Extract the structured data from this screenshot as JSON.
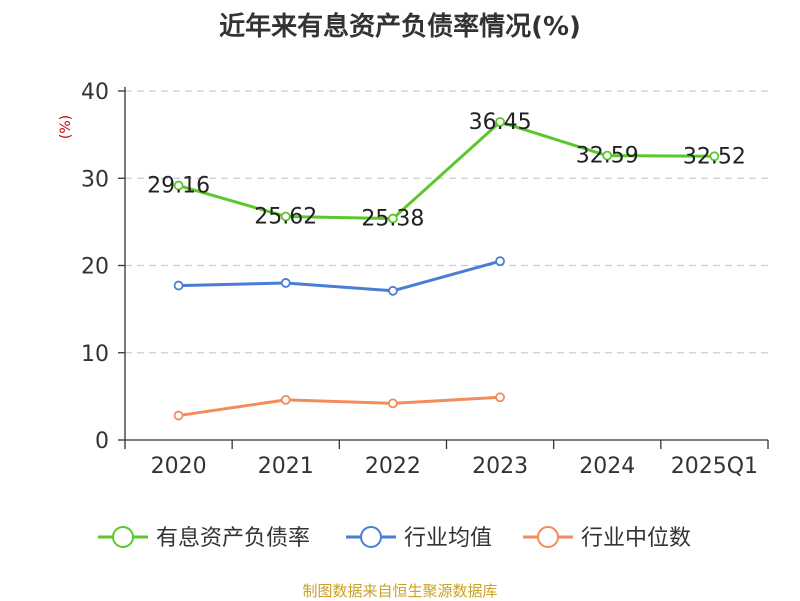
{
  "title": "近年来有息资产负债率情况(%)",
  "source": "制图数据来自恒生聚源数据库",
  "chart_data": {
    "type": "line",
    "title": "近年来有息资产负债率情况(%)",
    "ylabel": "(%)",
    "ylim": [
      0,
      40
    ],
    "yticks": [
      0,
      10,
      20,
      30,
      40
    ],
    "grid": true,
    "legend_position": "bottom",
    "categories": [
      "2020",
      "2021",
      "2022",
      "2023",
      "2024",
      "2025Q1"
    ],
    "series": [
      {
        "name": "有息资产负债率",
        "color": "#5cc72a",
        "show_labels": true,
        "values": [
          29.16,
          25.62,
          25.38,
          36.45,
          32.59,
          32.52
        ]
      },
      {
        "name": "行业均值",
        "color": "#4a7ed6",
        "show_labels": false,
        "values": [
          17.7,
          18.0,
          17.1,
          20.5,
          null,
          null
        ]
      },
      {
        "name": "行业中位数",
        "color": "#f28c5a",
        "show_labels": false,
        "values": [
          2.8,
          4.6,
          4.2,
          4.9,
          null,
          null
        ]
      }
    ]
  }
}
